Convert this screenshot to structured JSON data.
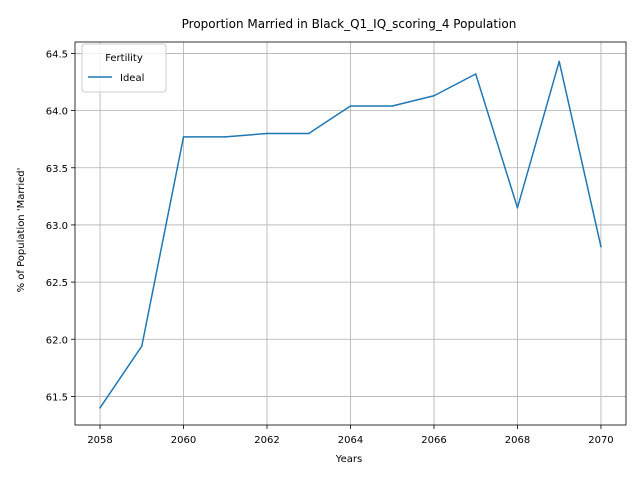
{
  "chart_data": {
    "type": "line",
    "title": "Proportion Married in Black_Q1_IQ_scoring_4 Population",
    "xlabel": "Years",
    "ylabel": "% of Population 'Married'",
    "xlim": [
      2057.4,
      2070.6
    ],
    "ylim": [
      61.25,
      64.6
    ],
    "x_ticks": [
      2058,
      2060,
      2062,
      2064,
      2066,
      2068,
      2070
    ],
    "y_ticks": [
      61.5,
      62.0,
      62.5,
      63.0,
      63.5,
      64.0,
      64.5
    ],
    "x_tick_labels": [
      "2058",
      "2060",
      "2062",
      "2064",
      "2066",
      "2068",
      "2070"
    ],
    "y_tick_labels": [
      "61.5",
      "62.0",
      "62.5",
      "63.0",
      "63.5",
      "64.0",
      "64.5"
    ],
    "grid": true,
    "legend": {
      "title": "Fertility",
      "placement": "upper-left"
    },
    "series": [
      {
        "name": "Ideal",
        "color": "#1f77b4",
        "x": [
          2058,
          2059,
          2060,
          2061,
          2062,
          2063,
          2064,
          2065,
          2066,
          2067,
          2068,
          2069,
          2070
        ],
        "y": [
          61.4,
          61.94,
          63.77,
          63.77,
          63.8,
          63.8,
          64.04,
          64.04,
          64.13,
          64.32,
          63.15,
          64.43,
          62.81
        ]
      }
    ]
  }
}
